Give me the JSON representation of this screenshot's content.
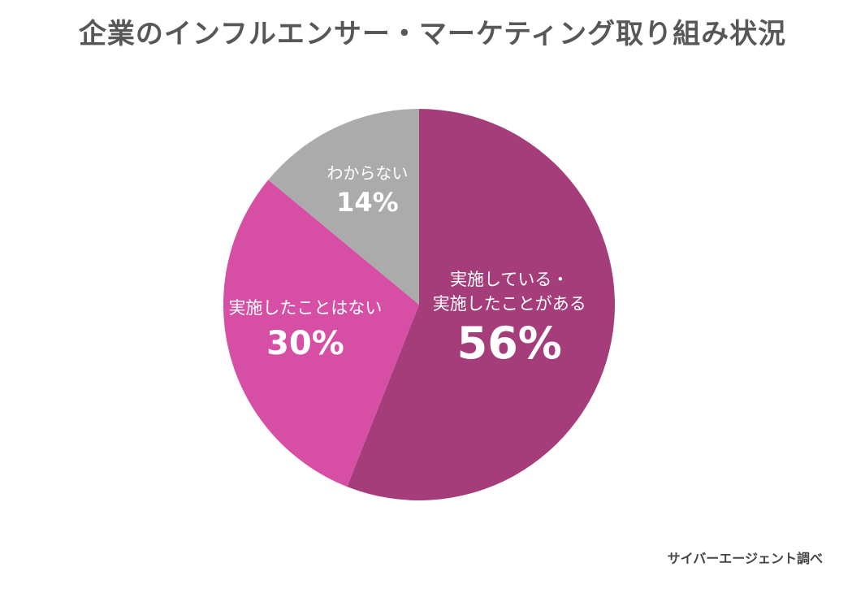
{
  "title": "企業のインフルエンサー・マーケティング取り組み状況",
  "source": "サイバーエージェント調べ",
  "chart_data": {
    "type": "pie",
    "title": "企業のインフルエンサー・マーケティング取り組み状況",
    "start_angle_deg": 0,
    "direction": "clockwise",
    "slices": [
      {
        "label_lines": [
          "実施している・",
          "実施したことがある"
        ],
        "value": 56,
        "value_label": "56%",
        "color": "#a53d7b"
      },
      {
        "label_lines": [
          "実施したことはない"
        ],
        "value": 30,
        "value_label": "30%",
        "color": "#d64fa4"
      },
      {
        "label_lines": [
          "わからない"
        ],
        "value": 14,
        "value_label": "14%",
        "color": "#ababab"
      }
    ]
  }
}
